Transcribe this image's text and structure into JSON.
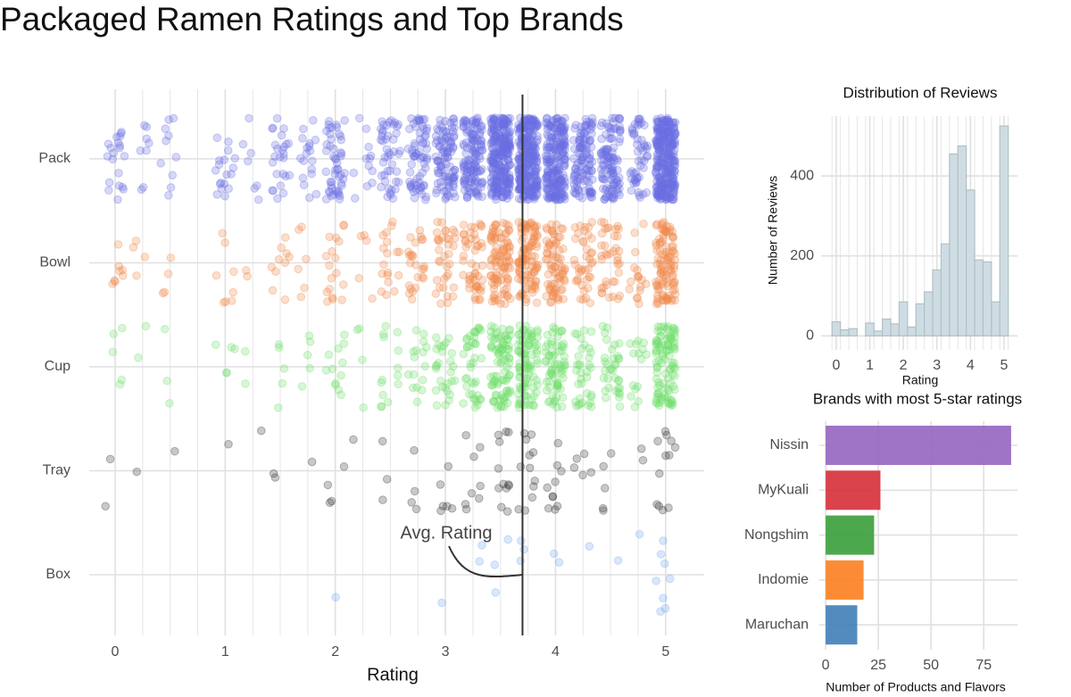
{
  "title": "Packaged Ramen Ratings and Top Brands",
  "chart_data": [
    {
      "type": "jitter",
      "x_label": "Rating",
      "categories": [
        "Pack",
        "Bowl",
        "Cup",
        "Tray",
        "Box"
      ],
      "x": [
        0,
        0.25,
        0.5,
        0.75,
        1,
        1.25,
        1.5,
        1.75,
        2,
        2.25,
        2.5,
        2.75,
        3,
        3.25,
        3.5,
        3.75,
        4,
        4.25,
        4.5,
        4.75,
        5
      ],
      "series": [
        {
          "color": "#6b70e3",
          "values": [
            20,
            8,
            10,
            0,
            18,
            7,
            25,
            18,
            50,
            12,
            45,
            65,
            95,
            130,
            260,
            270,
            210,
            110,
            105,
            50,
            300
          ]
        },
        {
          "color": "#f08a4b",
          "values": [
            8,
            4,
            4,
            0,
            8,
            2,
            10,
            6,
            18,
            5,
            18,
            25,
            35,
            50,
            95,
            100,
            75,
            40,
            38,
            17,
            105
          ]
        },
        {
          "color": "#6fe06a",
          "values": [
            5,
            2,
            3,
            0,
            5,
            2,
            5,
            5,
            12,
            4,
            14,
            16,
            28,
            40,
            85,
            90,
            68,
            35,
            35,
            15,
            100
          ]
        },
        {
          "color": "#3a3a3a",
          "values": [
            2,
            1,
            1,
            0,
            1,
            1,
            2,
            1,
            4,
            1,
            3,
            4,
            6,
            8,
            12,
            12,
            10,
            5,
            5,
            2,
            12
          ]
        },
        {
          "color": "#78aaf0",
          "values": [
            0,
            0,
            0,
            0,
            0,
            0,
            0,
            0,
            1,
            0,
            0,
            0,
            1,
            2,
            3,
            3,
            2,
            1,
            1,
            1,
            8
          ]
        }
      ],
      "xlim": [
        -0.235,
        5.35
      ],
      "xticks": [
        0,
        1,
        2,
        3,
        4,
        5
      ],
      "avg_rating": 3.7,
      "annotation": "Avg. Rating"
    },
    {
      "type": "histogram",
      "title": "Distribution of Reviews",
      "x_label": "Rating",
      "y_label": "Number of Reviews",
      "bins": [
        -0.125,
        0.125,
        0.375,
        0.625,
        0.875,
        1.125,
        1.375,
        1.625,
        1.875,
        2.125,
        2.375,
        2.625,
        2.875,
        3.125,
        3.375,
        3.625,
        3.875,
        4.125,
        4.375,
        4.625,
        4.875,
        5.125
      ],
      "values": [
        35,
        15,
        18,
        0,
        32,
        12,
        42,
        30,
        85,
        22,
        80,
        110,
        165,
        230,
        455,
        475,
        365,
        190,
        185,
        85,
        525
      ],
      "color": "#cddde3",
      "xlim": [
        -0.45,
        5.4
      ],
      "xticks": [
        0,
        1,
        2,
        3,
        4,
        5
      ],
      "ylim": [
        -35,
        550
      ],
      "yticks": [
        0,
        200,
        400
      ]
    },
    {
      "type": "hbar",
      "title": "Brands with most 5-star ratings",
      "x_label": "Number of Products and Flavors",
      "categories": [
        "Nissin",
        "MyKuali",
        "Nongshim",
        "Indomie",
        "Maruchan"
      ],
      "values": [
        88,
        26,
        23,
        18,
        15
      ],
      "colors": [
        "#9564bf",
        "#d62f38",
        "#3a9e3a",
        "#fb7f1f",
        "#3f7fb8"
      ],
      "xlim": [
        -3,
        91
      ],
      "xticks": [
        0,
        25,
        50,
        75
      ]
    }
  ]
}
